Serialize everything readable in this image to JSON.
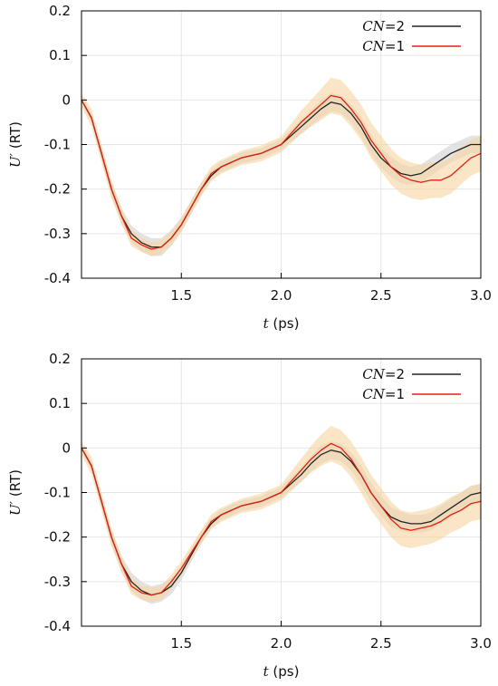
{
  "chart_data": [
    {
      "type": "line",
      "title": "",
      "xlabel": {
        "var": "t",
        "unit": " (ps)"
      },
      "ylabel": {
        "var": "U′",
        "unit": " (RT)"
      },
      "xlim": [
        1.0,
        3.0
      ],
      "ylim": [
        -0.4,
        0.2
      ],
      "x_ticks": [
        1.5,
        2.0,
        2.5,
        3.0
      ],
      "x_tick_labels": [
        "1.5",
        "2.0",
        "2.5",
        "3.0"
      ],
      "y_ticks": [
        -0.4,
        -0.3,
        -0.2,
        -0.1,
        0,
        0.1,
        0.2
      ],
      "y_tick_labels": [
        "-0.4",
        "-0.3",
        "-0.2",
        "-0.1",
        "0",
        "0.1",
        "0.2"
      ],
      "grid": true,
      "legend_position": "top-right",
      "series": [
        {
          "name": "CN=2",
          "legend_var": "CN",
          "legend_val": "=2",
          "color": "#222222",
          "band_color": "#d9d9d9",
          "x": [
            1.0,
            1.05,
            1.1,
            1.15,
            1.2,
            1.25,
            1.3,
            1.35,
            1.4,
            1.45,
            1.5,
            1.55,
            1.6,
            1.65,
            1.7,
            1.8,
            1.9,
            2.0,
            2.05,
            2.1,
            2.15,
            2.2,
            2.25,
            2.3,
            2.35,
            2.4,
            2.45,
            2.5,
            2.55,
            2.6,
            2.65,
            2.7,
            2.75,
            2.8,
            2.85,
            2.9,
            2.95,
            3.0
          ],
          "y": [
            0.0,
            -0.04,
            -0.12,
            -0.2,
            -0.26,
            -0.3,
            -0.32,
            -0.33,
            -0.33,
            -0.31,
            -0.28,
            -0.24,
            -0.2,
            -0.17,
            -0.15,
            -0.13,
            -0.12,
            -0.1,
            -0.08,
            -0.06,
            -0.04,
            -0.02,
            -0.005,
            -0.01,
            -0.03,
            -0.06,
            -0.1,
            -0.13,
            -0.15,
            -0.165,
            -0.17,
            -0.165,
            -0.15,
            -0.135,
            -0.12,
            -0.11,
            -0.1,
            -0.1
          ],
          "band_halfwidth": [
            0.006,
            0.01,
            0.014,
            0.016,
            0.018,
            0.018,
            0.02,
            0.02,
            0.02,
            0.018,
            0.016,
            0.015,
            0.014,
            0.012,
            0.012,
            0.012,
            0.012,
            0.012,
            0.014,
            0.016,
            0.018,
            0.02,
            0.02,
            0.02,
            0.02,
            0.022,
            0.022,
            0.022,
            0.022,
            0.022,
            0.02,
            0.02,
            0.02,
            0.02,
            0.02,
            0.02,
            0.02,
            0.02
          ]
        },
        {
          "name": "CN=1",
          "legend_var": "CN",
          "legend_val": "=1",
          "color": "#e02010",
          "band_color": "#f7d5a0",
          "x": [
            1.0,
            1.05,
            1.1,
            1.15,
            1.2,
            1.25,
            1.3,
            1.35,
            1.4,
            1.45,
            1.5,
            1.55,
            1.6,
            1.65,
            1.7,
            1.8,
            1.9,
            2.0,
            2.05,
            2.1,
            2.15,
            2.2,
            2.25,
            2.3,
            2.35,
            2.4,
            2.45,
            2.5,
            2.55,
            2.6,
            2.65,
            2.7,
            2.75,
            2.8,
            2.85,
            2.9,
            2.95,
            3.0
          ],
          "y": [
            0.0,
            -0.04,
            -0.12,
            -0.2,
            -0.26,
            -0.31,
            -0.325,
            -0.335,
            -0.33,
            -0.31,
            -0.28,
            -0.24,
            -0.2,
            -0.165,
            -0.15,
            -0.13,
            -0.12,
            -0.1,
            -0.075,
            -0.05,
            -0.03,
            -0.01,
            0.01,
            0.005,
            -0.02,
            -0.05,
            -0.09,
            -0.12,
            -0.15,
            -0.17,
            -0.18,
            -0.185,
            -0.18,
            -0.18,
            -0.17,
            -0.15,
            -0.13,
            -0.12
          ],
          "band_halfwidth": [
            0.015,
            0.02,
            0.02,
            0.02,
            0.018,
            0.018,
            0.016,
            0.016,
            0.016,
            0.016,
            0.016,
            0.016,
            0.016,
            0.016,
            0.016,
            0.016,
            0.018,
            0.018,
            0.022,
            0.026,
            0.03,
            0.035,
            0.04,
            0.04,
            0.04,
            0.04,
            0.04,
            0.04,
            0.04,
            0.04,
            0.04,
            0.04,
            0.04,
            0.04,
            0.04,
            0.04,
            0.04,
            0.04
          ]
        }
      ]
    },
    {
      "type": "line",
      "title": "",
      "xlabel": {
        "var": "t",
        "unit": " (ps)"
      },
      "ylabel": {
        "var": "U′",
        "unit": " (RT)"
      },
      "xlim": [
        1.0,
        3.0
      ],
      "ylim": [
        -0.4,
        0.2
      ],
      "x_ticks": [
        1.5,
        2.0,
        2.5,
        3.0
      ],
      "x_tick_labels": [
        "1.5",
        "2.0",
        "2.5",
        "3.0"
      ],
      "y_ticks": [
        -0.4,
        -0.3,
        -0.2,
        -0.1,
        0,
        0.1,
        0.2
      ],
      "y_tick_labels": [
        "-0.4",
        "-0.3",
        "-0.2",
        "-0.1",
        "0",
        "0.1",
        "0.2"
      ],
      "grid": true,
      "legend_position": "top-right",
      "series": [
        {
          "name": "CN=2",
          "legend_var": "CN",
          "legend_val": "=2",
          "color": "#222222",
          "band_color": "#d9d9d9",
          "x": [
            1.0,
            1.05,
            1.1,
            1.15,
            1.2,
            1.25,
            1.3,
            1.35,
            1.4,
            1.45,
            1.5,
            1.55,
            1.6,
            1.65,
            1.7,
            1.8,
            1.9,
            2.0,
            2.05,
            2.1,
            2.15,
            2.2,
            2.25,
            2.3,
            2.35,
            2.4,
            2.45,
            2.5,
            2.55,
            2.6,
            2.65,
            2.7,
            2.75,
            2.8,
            2.85,
            2.9,
            2.95,
            3.0
          ],
          "y": [
            0.0,
            -0.04,
            -0.12,
            -0.2,
            -0.26,
            -0.3,
            -0.32,
            -0.33,
            -0.325,
            -0.31,
            -0.28,
            -0.24,
            -0.2,
            -0.17,
            -0.15,
            -0.13,
            -0.12,
            -0.1,
            -0.08,
            -0.06,
            -0.035,
            -0.015,
            -0.005,
            -0.01,
            -0.03,
            -0.06,
            -0.1,
            -0.13,
            -0.155,
            -0.165,
            -0.17,
            -0.17,
            -0.165,
            -0.15,
            -0.135,
            -0.12,
            -0.105,
            -0.1
          ],
          "band_halfwidth": [
            0.006,
            0.01,
            0.014,
            0.016,
            0.018,
            0.02,
            0.02,
            0.02,
            0.02,
            0.018,
            0.016,
            0.015,
            0.014,
            0.012,
            0.012,
            0.012,
            0.012,
            0.012,
            0.014,
            0.016,
            0.018,
            0.02,
            0.02,
            0.02,
            0.02,
            0.022,
            0.022,
            0.022,
            0.022,
            0.022,
            0.02,
            0.02,
            0.02,
            0.02,
            0.02,
            0.02,
            0.02,
            0.02
          ]
        },
        {
          "name": "CN=1",
          "legend_var": "CN",
          "legend_val": "=1",
          "color": "#e02010",
          "band_color": "#f7d5a0",
          "x": [
            1.0,
            1.05,
            1.1,
            1.15,
            1.2,
            1.25,
            1.3,
            1.35,
            1.4,
            1.45,
            1.5,
            1.55,
            1.6,
            1.65,
            1.7,
            1.8,
            1.9,
            2.0,
            2.05,
            2.1,
            2.15,
            2.2,
            2.25,
            2.3,
            2.35,
            2.4,
            2.45,
            2.5,
            2.55,
            2.6,
            2.65,
            2.7,
            2.75,
            2.8,
            2.85,
            2.9,
            2.95,
            3.0
          ],
          "y": [
            0.0,
            -0.04,
            -0.12,
            -0.2,
            -0.26,
            -0.31,
            -0.325,
            -0.33,
            -0.325,
            -0.3,
            -0.27,
            -0.235,
            -0.2,
            -0.165,
            -0.15,
            -0.13,
            -0.12,
            -0.1,
            -0.075,
            -0.05,
            -0.025,
            -0.005,
            0.01,
            0.0,
            -0.025,
            -0.06,
            -0.1,
            -0.13,
            -0.16,
            -0.18,
            -0.185,
            -0.18,
            -0.175,
            -0.165,
            -0.15,
            -0.14,
            -0.125,
            -0.12
          ],
          "band_halfwidth": [
            0.015,
            0.02,
            0.02,
            0.02,
            0.018,
            0.018,
            0.016,
            0.016,
            0.016,
            0.016,
            0.016,
            0.016,
            0.016,
            0.016,
            0.016,
            0.016,
            0.018,
            0.018,
            0.022,
            0.026,
            0.03,
            0.035,
            0.04,
            0.04,
            0.04,
            0.04,
            0.04,
            0.04,
            0.04,
            0.04,
            0.04,
            0.04,
            0.04,
            0.04,
            0.04,
            0.04,
            0.04,
            0.04
          ]
        }
      ]
    }
  ]
}
